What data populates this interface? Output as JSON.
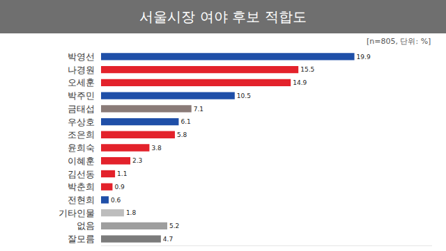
{
  "chart_data": {
    "type": "bar",
    "title": "서울시장 여야 후보 적합도",
    "annotations": [
      "[n=805, 단위: %]"
    ],
    "orientation": "horizontal",
    "categories": [
      "박영선",
      "나경원",
      "오세훈",
      "박주민",
      "금태섭",
      "우상호",
      "조은희",
      "윤희숙",
      "이혜훈",
      "김선동",
      "박춘희",
      "전현희",
      "기타인물",
      "없음",
      "잘모름"
    ],
    "values": [
      19.9,
      15.5,
      14.9,
      10.5,
      7.1,
      6.1,
      5.8,
      3.8,
      2.3,
      1.1,
      0.9,
      0.6,
      1.8,
      5.2,
      4.7
    ],
    "colors": [
      "#1f4fa8",
      "#e3222b",
      "#e3222b",
      "#1f4fa8",
      "#8a7b78",
      "#1f4fa8",
      "#e3222b",
      "#e3222b",
      "#e3222b",
      "#e3222b",
      "#e3222b",
      "#1f4fa8",
      "#bdbdbd",
      "#9e9e9e",
      "#7b7b7b"
    ],
    "xlim": [
      0,
      26
    ],
    "data_labels": true,
    "tick_labels": "y",
    "grid": false
  }
}
